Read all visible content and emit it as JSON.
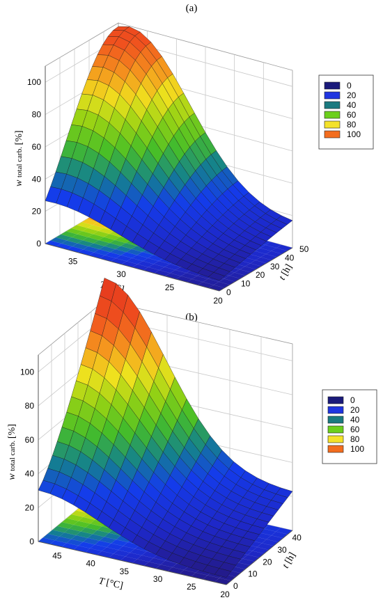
{
  "panels": [
    {
      "label": "(a)",
      "chart_data": {
        "type": "surface",
        "title": "",
        "zlabel_main": "w",
        "zlabel_sub": "total carb.",
        "zlabel_unit": "[%]",
        "xlabel_main": "T",
        "xlabel_unit": "[°C]",
        "ylabel_main": "t",
        "ylabel_unit": "[h]",
        "x_ticks": [
          "35",
          "30",
          "25",
          "20"
        ],
        "y_ticks": [
          "0",
          "10",
          "20",
          "30",
          "40",
          "50"
        ],
        "z_ticks": [
          "0",
          "20",
          "40",
          "60",
          "80",
          "100"
        ],
        "legend": [
          "0",
          "20",
          "40",
          "60",
          "80",
          "100"
        ],
        "legend_colors": [
          "#1a1a7a",
          "#1f35e0",
          "#1a7a80",
          "#6ccf1c",
          "#f4e22a",
          "#f36d1e"
        ],
        "T_range": [
          20,
          38
        ],
        "t_range": [
          0,
          50
        ],
        "z_range": [
          0,
          110
        ],
        "peak": {
          "T": 37,
          "t": 40,
          "value": 108
        }
      }
    },
    {
      "label": "(b)",
      "chart_data": {
        "type": "surface",
        "title": "",
        "zlabel_main": "w",
        "zlabel_sub": "total carb.",
        "zlabel_unit": "[%]",
        "xlabel_main": "T",
        "xlabel_unit": "[°C]",
        "ylabel_main": "t",
        "ylabel_unit": "[h]",
        "x_ticks": [
          "45",
          "40",
          "35",
          "30",
          "25",
          "20"
        ],
        "y_ticks": [
          "0",
          "10",
          "20",
          "30",
          "40"
        ],
        "z_ticks": [
          "0",
          "20",
          "40",
          "60",
          "80",
          "100"
        ],
        "legend": [
          "0",
          "20",
          "40",
          "60",
          "80",
          "100"
        ],
        "legend_colors": [
          "#1a1a7a",
          "#1f35e0",
          "#1a7a80",
          "#6ccf1c",
          "#f4e22a",
          "#f36d1e"
        ],
        "T_range": [
          20,
          48
        ],
        "t_range": [
          0,
          45
        ],
        "z_range": [
          0,
          110
        ],
        "peak": {
          "T": 48,
          "t": 45,
          "value": 105
        }
      }
    }
  ]
}
